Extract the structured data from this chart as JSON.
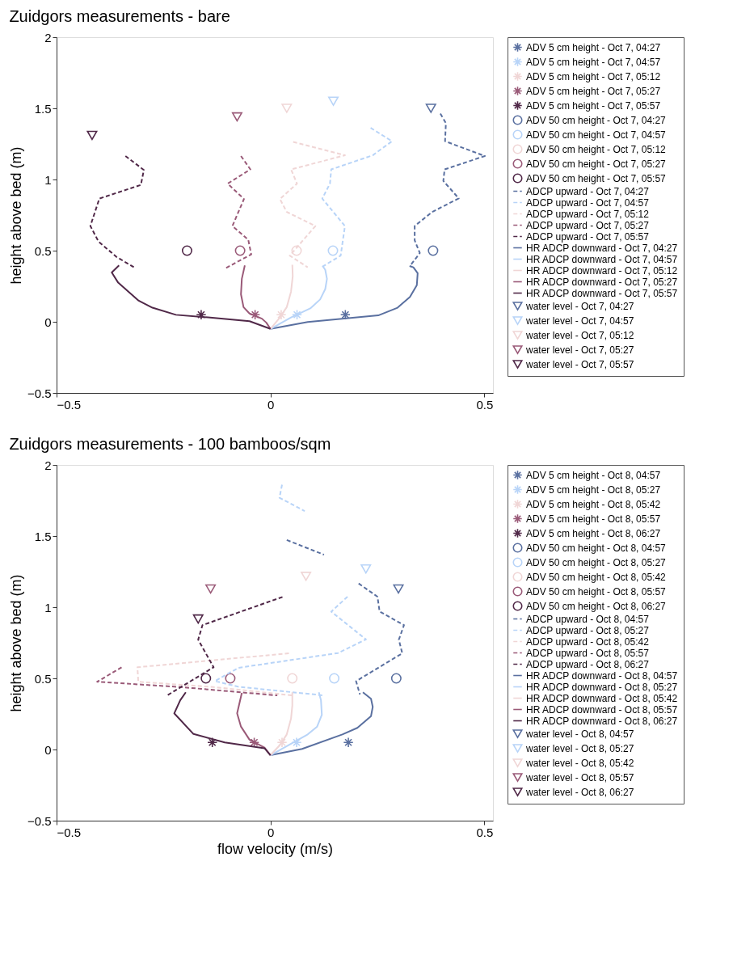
{
  "chart_data": [
    {
      "type": "line",
      "title": "Zuidgors measurements - bare",
      "ylabel": "height above bed (m)",
      "xlim": [
        -0.5,
        0.52
      ],
      "xticks": [
        -0.5,
        0,
        0.5
      ],
      "ylim": [
        -0.5,
        2
      ],
      "yticks": [
        -0.5,
        0,
        0.5,
        1,
        1.5,
        2
      ],
      "grid": false,
      "legend": "right",
      "series": [
        {
          "name": "ADV 5 cm height - Oct 7, 04:27",
          "type": "scatter",
          "marker": "cross",
          "color": "#5a70a0",
          "x": [
            0.175
          ],
          "values": [
            0.05
          ]
        },
        {
          "name": "ADV 5 cm height - Oct 7, 04:57",
          "type": "scatter",
          "marker": "cross",
          "color": "#b8d4f8",
          "x": [
            0.062
          ],
          "values": [
            0.05
          ]
        },
        {
          "name": "ADV 5 cm height - Oct 7, 05:12",
          "type": "scatter",
          "marker": "cross",
          "color": "#f0d6d6",
          "x": [
            0.025
          ],
          "values": [
            0.05
          ]
        },
        {
          "name": "ADV 5 cm height - Oct 7, 05:27",
          "type": "scatter",
          "marker": "cross",
          "color": "#9a5a78",
          "x": [
            -0.036
          ],
          "values": [
            0.05
          ]
        },
        {
          "name": "ADV 5 cm height - Oct 7, 05:57",
          "type": "scatter",
          "marker": "cross",
          "color": "#502848",
          "x": [
            -0.162
          ],
          "values": [
            0.05
          ]
        },
        {
          "name": "ADV 50 cm height - Oct 7, 04:27",
          "type": "scatter",
          "marker": "circle",
          "color": "#5a70a0",
          "x": [
            0.38
          ],
          "values": [
            0.5
          ]
        },
        {
          "name": "ADV 50 cm height - Oct 7, 04:57",
          "type": "scatter",
          "marker": "circle",
          "color": "#b8d4f8",
          "x": [
            0.146
          ],
          "values": [
            0.5
          ]
        },
        {
          "name": "ADV 50 cm height - Oct 7, 05:12",
          "type": "scatter",
          "marker": "circle",
          "color": "#f0d6d6",
          "x": [
            0.061
          ],
          "values": [
            0.5
          ]
        },
        {
          "name": "ADV 50 cm height - Oct 7, 05:27",
          "type": "scatter",
          "marker": "circle",
          "color": "#9a5a78",
          "x": [
            -0.071
          ],
          "values": [
            0.5
          ]
        },
        {
          "name": "ADV 50 cm height - Oct 7, 05:57",
          "type": "scatter",
          "marker": "circle",
          "color": "#502848",
          "x": [
            -0.195
          ],
          "values": [
            0.5
          ]
        },
        {
          "name": "ADCP upward - Oct 7, 04:27",
          "type": "line",
          "line_style": "dashed",
          "color": "#5a70a0",
          "x": [
            0.397,
            0.41,
            0.408,
            0.501,
            0.407,
            0.404,
            0.44,
            0.378,
            0.337,
            0.337,
            0.349,
            0.326
          ],
          "values": [
            1.463,
            1.396,
            1.269,
            1.165,
            1.071,
            0.99,
            0.867,
            0.772,
            0.673,
            0.573,
            0.483,
            0.392
          ]
        },
        {
          "name": "ADCP upward - Oct 7, 04:57",
          "type": "line",
          "line_style": "dashed",
          "color": "#b8d4f8",
          "x": [
            0.234,
            0.284,
            0.239,
            0.142,
            0.139,
            0.121,
            0.174,
            0.164,
            0.119
          ],
          "values": [
            1.363,
            1.269,
            1.17,
            1.071,
            0.971,
            0.866,
            0.673,
            0.465,
            0.383
          ]
        },
        {
          "name": "ADCP upward - Oct 7, 05:12",
          "type": "line",
          "line_style": "dashed",
          "color": "#f0d6d6",
          "x": [
            0.053,
            0.174,
            0.048,
            0.062,
            0.022,
            0.038,
            0.105,
            0.045,
            0.087
          ],
          "values": [
            1.264,
            1.17,
            1.071,
            0.971,
            0.863,
            0.772,
            0.673,
            0.465,
            0.383
          ]
        },
        {
          "name": "ADCP upward - Oct 7, 05:27",
          "type": "line",
          "line_style": "dashed",
          "color": "#9a5a78",
          "x": [
            -0.069,
            -0.047,
            -0.1,
            -0.062,
            -0.089,
            -0.052,
            -0.045,
            -0.104
          ],
          "values": [
            1.165,
            1.071,
            0.971,
            0.863,
            0.673,
            0.577,
            0.474,
            0.378
          ]
        },
        {
          "name": "ADCP upward - Oct 7, 05:57",
          "type": "line",
          "line_style": "dashed",
          "color": "#502848",
          "x": [
            -0.339,
            -0.296,
            -0.303,
            -0.4,
            -0.421,
            -0.402,
            -0.36,
            -0.316
          ],
          "values": [
            1.165,
            1.067,
            0.962,
            0.866,
            0.673,
            0.564,
            0.456,
            0.378
          ]
        },
        {
          "name": "HR ADCP downward - Oct 7, 04:27",
          "type": "line",
          "line_style": "solid",
          "color": "#5a70a0",
          "x": [
            0.325,
            0.334,
            0.344,
            0.342,
            0.326,
            0.297,
            0.252,
            0.087,
            0
          ],
          "values": [
            0.392,
            0.383,
            0.342,
            0.257,
            0.175,
            0.099,
            0.045,
            -0.002,
            -0.05
          ]
        },
        {
          "name": "HR ADCP downward - Oct 7, 04:57",
          "type": "line",
          "line_style": "solid",
          "color": "#b8d4f8",
          "x": [
            0.122,
            0.128,
            0.132,
            0.128,
            0.116,
            0.093,
            0.048,
            0
          ],
          "values": [
            0.392,
            0.365,
            0.302,
            0.23,
            0.157,
            0.094,
            0.031,
            -0.05
          ]
        },
        {
          "name": "HR ADCP downward - Oct 7, 05:12",
          "type": "line",
          "line_style": "solid",
          "color": "#f0d6d6",
          "x": [
            0.051,
            0.052,
            0.048,
            0.038,
            0.022,
            0
          ],
          "values": [
            0.401,
            0.32,
            0.212,
            0.103,
            0.031,
            -0.05
          ]
        },
        {
          "name": "HR ADCP downward - Oct 7, 05:27",
          "type": "line",
          "line_style": "solid",
          "color": "#9a5a78",
          "x": [
            -0.06,
            -0.067,
            -0.069,
            -0.063,
            -0.049,
            -0.02,
            -0.01,
            0
          ],
          "values": [
            0.396,
            0.302,
            0.193,
            0.103,
            0.058,
            0.022,
            -0.005,
            -0.05
          ]
        },
        {
          "name": "HR ADCP downward - Oct 7, 05:57",
          "type": "line",
          "line_style": "solid",
          "color": "#502848",
          "x": [
            -0.354,
            -0.371,
            -0.356,
            -0.308,
            -0.276,
            -0.221,
            -0.146,
            -0.049,
            0
          ],
          "values": [
            0.396,
            0.347,
            0.275,
            0.148,
            0.099,
            0.049,
            0.031,
            0.004,
            -0.05
          ]
        },
        {
          "name": "water level - Oct 7, 04:27",
          "type": "scatter",
          "marker": "triangle",
          "color": "#5a70a0",
          "x": [
            0.375
          ],
          "values": [
            1.5
          ]
        },
        {
          "name": "water level - Oct 7, 04:57",
          "type": "scatter",
          "marker": "triangle",
          "color": "#b8d4f8",
          "x": [
            0.147
          ],
          "values": [
            1.55
          ]
        },
        {
          "name": "water level - Oct 7, 05:12",
          "type": "scatter",
          "marker": "triangle",
          "color": "#f0d6d6",
          "x": [
            0.038
          ],
          "values": [
            1.5
          ]
        },
        {
          "name": "water level - Oct 7, 05:27",
          "type": "scatter",
          "marker": "triangle",
          "color": "#9a5a78",
          "x": [
            -0.078
          ],
          "values": [
            1.44
          ]
        },
        {
          "name": "water level - Oct 7, 05:57",
          "type": "scatter",
          "marker": "triangle",
          "color": "#502848",
          "x": [
            -0.417
          ],
          "values": [
            1.31
          ]
        }
      ]
    },
    {
      "type": "line",
      "title": "Zuidgors measurements - 100 bamboos/sqm",
      "xlabel": "flow velocity (m/s)",
      "ylabel": "height above bed (m)",
      "xlim": [
        -0.5,
        0.52
      ],
      "xticks": [
        -0.5,
        0,
        0.5
      ],
      "ylim": [
        -0.5,
        2
      ],
      "yticks": [
        -0.5,
        0,
        0.5,
        1,
        1.5,
        2
      ],
      "grid": false,
      "legend": "right",
      "series": [
        {
          "name": "ADV 5 cm height - Oct 8, 04:57",
          "type": "scatter",
          "marker": "cross",
          "color": "#5a70a0",
          "x": [
            0.182
          ],
          "values": [
            0.05
          ]
        },
        {
          "name": "ADV 5 cm height - Oct 8, 05:27",
          "type": "scatter",
          "marker": "cross",
          "color": "#b8d4f8",
          "x": [
            0.061
          ],
          "values": [
            0.05
          ]
        },
        {
          "name": "ADV 5 cm height - Oct 8, 05:42",
          "type": "scatter",
          "marker": "cross",
          "color": "#f0d6d6",
          "x": [
            0.027
          ],
          "values": [
            0.05
          ]
        },
        {
          "name": "ADV 5 cm height - Oct 8, 05:57",
          "type": "scatter",
          "marker": "cross",
          "color": "#9a5a78",
          "x": [
            -0.038
          ],
          "values": [
            0.05
          ]
        },
        {
          "name": "ADV 5 cm height - Oct 8, 06:27",
          "type": "scatter",
          "marker": "cross",
          "color": "#502848",
          "x": [
            -0.136
          ],
          "values": [
            0.05
          ]
        },
        {
          "name": "ADV 50 cm height - Oct 8, 04:57",
          "type": "scatter",
          "marker": "circle",
          "color": "#5a70a0",
          "x": [
            0.294
          ],
          "values": [
            0.5
          ]
        },
        {
          "name": "ADV 50 cm height - Oct 8, 05:27",
          "type": "scatter",
          "marker": "circle",
          "color": "#b8d4f8",
          "x": [
            0.149
          ],
          "values": [
            0.5
          ]
        },
        {
          "name": "ADV 50 cm height - Oct 8, 05:42",
          "type": "scatter",
          "marker": "circle",
          "color": "#f0d6d6",
          "x": [
            0.051
          ],
          "values": [
            0.5
          ]
        },
        {
          "name": "ADV 50 cm height - Oct 8, 05:57",
          "type": "scatter",
          "marker": "circle",
          "color": "#9a5a78",
          "x": [
            -0.094
          ],
          "values": [
            0.5
          ]
        },
        {
          "name": "ADV 50 cm height - Oct 8, 06:27",
          "type": "scatter",
          "marker": "circle",
          "color": "#502848",
          "x": [
            -0.151
          ],
          "values": [
            0.5
          ]
        },
        {
          "name": "ADCP upward - Oct 8, 04:57",
          "type": "line",
          "line_style": "dashed",
          "color": "#5a70a0",
          "x": [
            0.038,
            0.125,
            null,
            0.206,
            0.25,
            0.255,
            0.312,
            0.3,
            0.308,
            0.2,
            0.209
          ],
          "values": [
            1.472,
            1.369,
            null,
            1.167,
            1.074,
            0.97,
            0.874,
            0.772,
            0.676,
            0.48,
            0.387
          ]
        },
        {
          "name": "ADCP upward - Oct 8, 05:27",
          "type": "line",
          "line_style": "dashed",
          "color": "#b8d4f8",
          "x": [
            0.027,
            0.021,
            0.08,
            null,
            0.18,
            0.142,
            0.223,
            0.158,
            -0.075,
            -0.13,
            -0.075,
            0.125
          ],
          "values": [
            1.861,
            1.769,
            1.676,
            null,
            1.074,
            0.969,
            0.774,
            0.678,
            0.574,
            0.481,
            0.441,
            0.38
          ]
        },
        {
          "name": "ADCP upward - Oct 8, 05:42",
          "type": "line",
          "line_style": "dashed",
          "color": "#f0d6d6",
          "x": [
            0.043,
            -0.146,
            -0.311,
            -0.309,
            -0.133,
            0.051
          ],
          "values": [
            0.676,
            0.624,
            0.578,
            0.476,
            0.439,
            0.38
          ]
        },
        {
          "name": "ADCP upward - Oct 8, 05:57",
          "type": "line",
          "line_style": "dashed",
          "color": "#9a5a78",
          "x": [
            -0.348,
            -0.405,
            -0.211,
            0.016
          ],
          "values": [
            0.578,
            0.476,
            0.439,
            0.38
          ]
        },
        {
          "name": "ADCP upward - Oct 8, 06:27",
          "type": "line",
          "line_style": "dashed",
          "color": "#502848",
          "x": [
            0.028,
            -0.159,
            -0.169,
            -0.133,
            -0.24
          ],
          "values": [
            1.072,
            0.874,
            0.772,
            0.578,
            0.383
          ]
        },
        {
          "name": "HR ADCP downward - Oct 8, 04:57",
          "type": "line",
          "line_style": "solid",
          "color": "#5a70a0",
          "x": [
            0.216,
            0.235,
            0.239,
            0.235,
            0.203,
            0.168,
            0.074,
            0
          ],
          "values": [
            0.402,
            0.356,
            0.3,
            0.235,
            0.152,
            0.106,
            0.004,
            -0.04
          ]
        },
        {
          "name": "HR ADCP downward - Oct 8, 05:27",
          "type": "line",
          "line_style": "solid",
          "color": "#b8d4f8",
          "x": [
            0.113,
            0.118,
            0.12,
            0.109,
            0.087,
            0.054,
            0
          ],
          "values": [
            0.402,
            0.346,
            0.244,
            0.161,
            0.106,
            0.05,
            -0.04
          ]
        },
        {
          "name": "HR ADCP downward - Oct 8, 05:42",
          "type": "line",
          "line_style": "solid",
          "color": "#f0d6d6",
          "x": [
            0.051,
            0.051,
            0.048,
            0.038,
            0.022,
            0
          ],
          "values": [
            0.402,
            0.309,
            0.217,
            0.106,
            0.031,
            -0.04
          ]
        },
        {
          "name": "HR ADCP downward - Oct 8, 05:57",
          "type": "line",
          "line_style": "solid",
          "color": "#9a5a78",
          "x": [
            -0.067,
            -0.078,
            -0.069,
            -0.049,
            -0.014,
            0
          ],
          "values": [
            0.398,
            0.254,
            0.161,
            0.069,
            0.013,
            -0.04
          ]
        },
        {
          "name": "HR ADCP downward - Oct 8, 06:27",
          "type": "line",
          "line_style": "solid",
          "color": "#502848",
          "x": [
            -0.198,
            -0.211,
            -0.225,
            -0.18,
            -0.107,
            -0.014,
            0
          ],
          "values": [
            0.402,
            0.346,
            0.254,
            0.109,
            0.05,
            0.009,
            -0.04
          ]
        },
        {
          "name": "water level - Oct 8, 04:57",
          "type": "scatter",
          "marker": "triangle",
          "color": "#5a70a0",
          "x": [
            0.299
          ],
          "values": [
            1.128
          ]
        },
        {
          "name": "water level - Oct 8, 05:27",
          "type": "scatter",
          "marker": "triangle",
          "color": "#b8d4f8",
          "x": [
            0.223
          ],
          "values": [
            1.269
          ]
        },
        {
          "name": "water level - Oct 8, 05:42",
          "type": "scatter",
          "marker": "triangle",
          "color": "#f0d6d6",
          "x": [
            0.083
          ],
          "values": [
            1.217
          ]
        },
        {
          "name": "water level - Oct 8, 05:57",
          "type": "scatter",
          "marker": "triangle",
          "color": "#9a5a78",
          "x": [
            -0.14
          ],
          "values": [
            1.128
          ]
        },
        {
          "name": "water level - Oct 8, 06:27",
          "type": "scatter",
          "marker": "triangle",
          "color": "#502848",
          "x": [
            -0.169
          ],
          "values": [
            0.917
          ]
        }
      ]
    }
  ]
}
